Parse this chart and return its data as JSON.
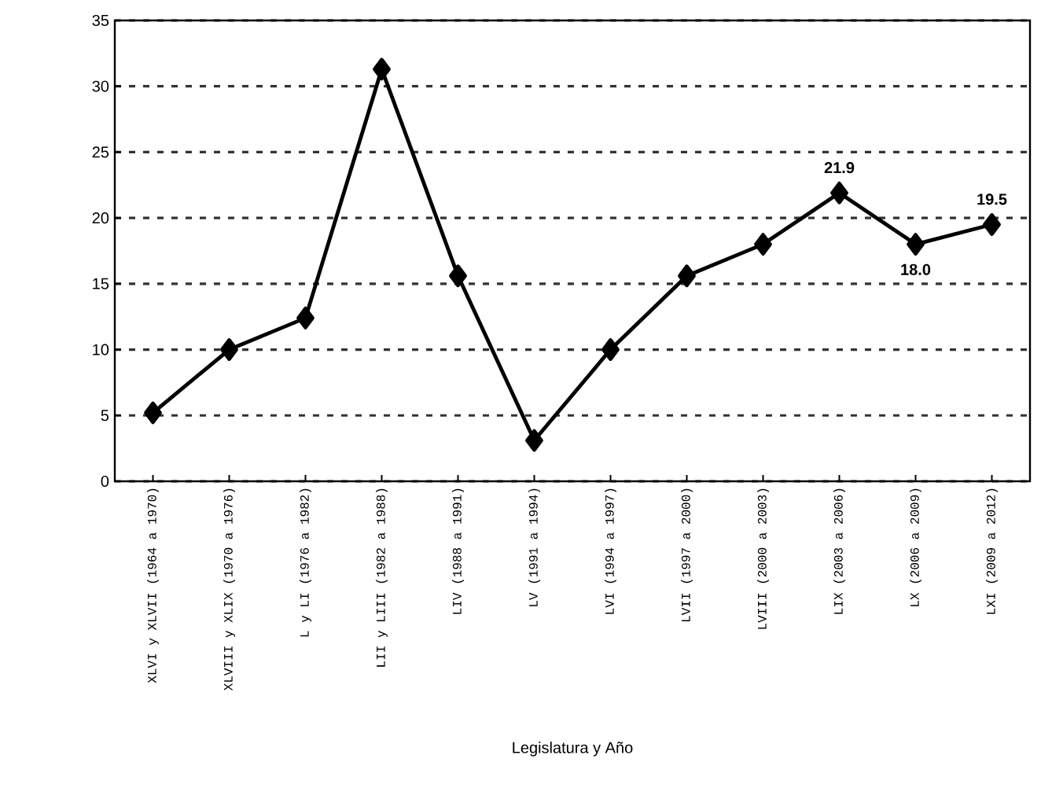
{
  "chart_data": {
    "type": "line",
    "xlabel": "Legislatura y Año",
    "categories": [
      "XLVI y XLVII (1964 a 1970)",
      "XLVIII y XLIX (1970 a 1976)",
      "L y LI (1976 a 1982)",
      "LII y LIII (1982 a 1988)",
      "LIV (1988 a 1991)",
      "LV (1991 a 1994)",
      "LVI (1994 a 1997)",
      "LVII (1997 a 2000)",
      "LVIII (2000 a 2003)",
      "LIX (2003 a 2006)",
      "LX (2006 a 2009)",
      "LXI (2009 a 2012)"
    ],
    "series": [
      {
        "color": "#000000",
        "values": [
          5.2,
          10.0,
          12.4,
          31.3,
          15.6,
          3.1,
          10.0,
          15.6,
          18.0,
          21.9,
          18.0,
          19.5
        ],
        "value_labels": [
          null,
          null,
          null,
          null,
          null,
          null,
          null,
          null,
          null,
          "21.9",
          "18.0",
          "19.5"
        ]
      }
    ],
    "ylim": [
      0,
      35
    ],
    "yticks": [
      0,
      5,
      10,
      15,
      20,
      25,
      30,
      35
    ],
    "grid": "y",
    "marker": "diamond",
    "line_style": "solid"
  }
}
